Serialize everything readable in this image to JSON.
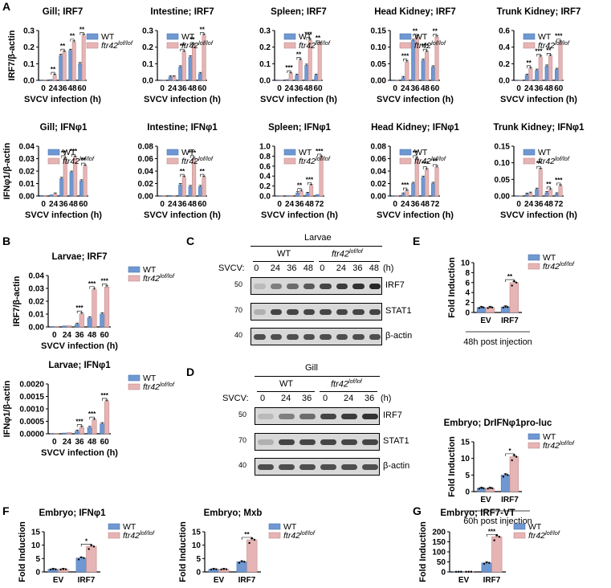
{
  "colors": {
    "wt": "#6f98d2",
    "ko": "#e6b4b4",
    "wt_dark": "#4d78b4",
    "ko_dark": "#c28a8a"
  },
  "legend": {
    "wt": "WT",
    "ko_base": "ftr42",
    "ko_sup": "lof/lof"
  },
  "panel_labels": {
    "A": "A",
    "B": "B",
    "C": "C",
    "D": "D",
    "E": "E",
    "F": "F",
    "G": "G"
  },
  "chart_data": [
    {
      "type": "bar",
      "title": "Gill; IRF7",
      "ylabel": "IRF7/β-actin",
      "xlabel": "SVCV infection (h)",
      "categories": [
        "0",
        "24",
        "36",
        "48",
        "60"
      ],
      "yticks": [
        "0.0",
        "0.1",
        "0.2",
        "0.3"
      ],
      "ylim": [
        0,
        0.3
      ],
      "series": [
        {
          "name": "WT",
          "values": [
            0.002,
            0.005,
            0.15,
            0.18,
            0.1
          ]
        },
        {
          "name": "ftr42lof/lof",
          "values": [
            0.002,
            0.03,
            0.17,
            0.23,
            0.27
          ]
        }
      ],
      "significance": [
        "",
        "**",
        "**",
        "**",
        "**"
      ]
    },
    {
      "type": "bar",
      "title": "Intestine; IRF7",
      "xlabel": "SVCV infection (h)",
      "categories": [
        "0",
        "24",
        "36",
        "48",
        "60"
      ],
      "yticks": [
        "0.0",
        "0.1",
        "0.2",
        "0.3"
      ],
      "ylim": [
        0,
        0.3
      ],
      "series": [
        {
          "name": "WT",
          "values": [
            0.002,
            0.02,
            0.08,
            0.14,
            0.04
          ]
        },
        {
          "name": "ftr42lof/lof",
          "values": [
            0.002,
            0.02,
            0.17,
            0.21,
            0.27
          ]
        }
      ],
      "significance": [
        "",
        "",
        "**",
        "**",
        "**"
      ]
    },
    {
      "type": "bar",
      "title": "Spleen; IRF7",
      "xlabel": "SVCV infection (h)",
      "categories": [
        "0",
        "24",
        "36",
        "48",
        "60"
      ],
      "yticks": [
        "0.0",
        "0.1",
        "0.2",
        "0.3"
      ],
      "ylim": [
        0,
        0.3
      ],
      "series": [
        {
          "name": "WT",
          "values": [
            0.002,
            0.005,
            0.03,
            0.09,
            0.03
          ]
        },
        {
          "name": "ftr42lof/lof",
          "values": [
            0.002,
            0.04,
            0.12,
            0.24,
            0.22
          ]
        }
      ],
      "significance": [
        "",
        "***",
        "**",
        "***",
        "**"
      ]
    },
    {
      "type": "bar",
      "title": "Head Kidney; IRF7",
      "xlabel": "SVCV infection (h)",
      "categories": [
        "0",
        "24",
        "36",
        "48",
        "60"
      ],
      "yticks": [
        "0.00",
        "0.05",
        "0.10",
        "0.15"
      ],
      "ylim": [
        0,
        0.15
      ],
      "series": [
        {
          "name": "WT",
          "values": [
            0.001,
            0.008,
            0.12,
            0.06,
            0.04
          ]
        },
        {
          "name": "ftr42lof/lof",
          "values": [
            0.001,
            0.055,
            0.13,
            0.085,
            0.13
          ]
        }
      ],
      "significance": [
        "",
        "***",
        "**",
        "***",
        "**"
      ]
    },
    {
      "type": "bar",
      "title": "Trunk Kidney; IRF7",
      "xlabel": "SVCV infection (h)",
      "categories": [
        "0",
        "24",
        "36",
        "48",
        "60"
      ],
      "yticks": [
        "0.0",
        "0.2",
        "0.4",
        "0.6"
      ],
      "ylim": [
        0,
        0.6
      ],
      "series": [
        {
          "name": "WT",
          "values": [
            0.002,
            0.06,
            0.12,
            0.17,
            0.13
          ]
        },
        {
          "name": "ftr42lof/lof",
          "values": [
            0.002,
            0.14,
            0.28,
            0.29,
            0.46
          ]
        }
      ],
      "significance": [
        "",
        "**",
        "***",
        "**",
        "***"
      ]
    },
    {
      "type": "bar",
      "title": "Gill; IFNφ1",
      "ylabel": "IFNφ1/β-actin",
      "xlabel": "SVCV infection (h)",
      "categories": [
        "0",
        "24",
        "36",
        "48",
        "60"
      ],
      "yticks": [
        "0.00",
        "0.01",
        "0.02",
        "0.03",
        "0.04"
      ],
      "ylim": [
        0,
        0.04
      ],
      "series": [
        {
          "name": "WT",
          "values": [
            0.0005,
            0.001,
            0.014,
            0.019,
            0.012
          ]
        },
        {
          "name": "ftr42lof/lof",
          "values": [
            0.0005,
            0.0015,
            0.03,
            0.031,
            0.024
          ]
        }
      ],
      "significance": [
        "",
        "",
        "**",
        "***",
        "**"
      ]
    },
    {
      "type": "bar",
      "title": "Intestine; IFNφ1",
      "xlabel": "SVCV infection (h)",
      "categories": [
        "0",
        "24",
        "36",
        "48",
        "60"
      ],
      "yticks": [
        "0.00",
        "0.02",
        "0.04",
        "0.06",
        "0.08"
      ],
      "ylim": [
        0,
        0.08
      ],
      "series": [
        {
          "name": "WT",
          "values": [
            0.0005,
            0.001,
            0.018,
            0.015,
            0.015
          ]
        },
        {
          "name": "ftr42lof/lof",
          "values": [
            0.0005,
            0.001,
            0.03,
            0.06,
            0.03
          ]
        }
      ],
      "significance": [
        "",
        "",
        "**",
        "***",
        "**"
      ]
    },
    {
      "type": "bar",
      "title": "Spleen; IFNφ1",
      "xlabel": "SVCV infection (h)",
      "categories": [
        "0",
        "24",
        "36",
        "48",
        "72"
      ],
      "yticks": [
        "0.0",
        "0.2",
        "0.4",
        "0.6",
        "0.8",
        "1.0"
      ],
      "ylim": [
        0,
        1.0
      ],
      "series": [
        {
          "name": "WT",
          "values": [
            0.002,
            0.005,
            0.06,
            0.05,
            0.03
          ]
        },
        {
          "name": "ftr42lof/lof",
          "values": [
            0.002,
            0.01,
            0.09,
            0.21,
            0.78
          ]
        }
      ],
      "significance": [
        "",
        "",
        "**",
        "***",
        "***"
      ]
    },
    {
      "type": "bar",
      "title": "Head Kidney; IFNφ1",
      "xlabel": "SVCV infection (h)",
      "categories": [
        "0",
        "24",
        "36",
        "48",
        "72"
      ],
      "yticks": [
        "0.00",
        "0.02",
        "0.04",
        "0.06",
        "0.08"
      ],
      "ylim": [
        0,
        0.08
      ],
      "series": [
        {
          "name": "WT",
          "values": [
            0.0005,
            0.003,
            0.02,
            0.03,
            0.02
          ]
        },
        {
          "name": "ftr42lof/lof",
          "values": [
            0.0005,
            0.008,
            0.06,
            0.042,
            0.046
          ]
        }
      ],
      "significance": [
        "",
        "***",
        "**",
        "***",
        "**"
      ]
    },
    {
      "type": "bar",
      "title": "Trunk Kidney; IFNφ1",
      "xlabel": "SVCV infection (h)",
      "categories": [
        "0",
        "24",
        "36",
        "48",
        "72"
      ],
      "yticks": [
        "0.00",
        "0.05",
        "0.10",
        "0.15"
      ],
      "ylim": [
        0,
        0.15
      ],
      "series": [
        {
          "name": "WT",
          "values": [
            0.0005,
            0.005,
            0.02,
            0.01,
            0.006
          ]
        },
        {
          "name": "ftr42lof/lof",
          "values": [
            0.0005,
            0.008,
            0.08,
            0.018,
            0.03
          ]
        }
      ],
      "significance": [
        "",
        "",
        "**",
        "**",
        "***"
      ]
    },
    {
      "type": "bar",
      "title": "Larvae; IRF7",
      "ylabel": "IRF7/β-actin",
      "xlabel": "SVCV infection (h)",
      "categories": [
        "0",
        "24",
        "36",
        "48",
        "60"
      ],
      "yticks": [
        "0.00",
        "0.01",
        "0.02",
        "0.03",
        "0.04"
      ],
      "ylim": [
        0,
        0.04
      ],
      "series": [
        {
          "name": "WT",
          "values": [
            0.0003,
            0.0008,
            0.002,
            0.007,
            0.01
          ]
        },
        {
          "name": "ftr42lof/lof",
          "values": [
            0.0003,
            0.001,
            0.01,
            0.029,
            0.031
          ]
        }
      ],
      "significance": [
        "",
        "",
        "***",
        "***",
        "***"
      ]
    },
    {
      "type": "bar",
      "title": "Larvae; IFNφ1",
      "ylabel": "IFNφ1/β-actin",
      "xlabel": "SVCV infection (h)",
      "categories": [
        "0",
        "24",
        "36",
        "48",
        "60"
      ],
      "yticks": [
        "0.0000",
        "0.0005",
        "0.0010",
        "0.0015",
        "0.0020"
      ],
      "ylim": [
        0,
        0.002
      ],
      "series": [
        {
          "name": "WT",
          "values": [
            1e-05,
            3e-05,
            0.0001,
            0.00025,
            0.0004
          ]
        },
        {
          "name": "ftr42lof/lof",
          "values": [
            1e-05,
            5e-05,
            0.00025,
            0.00055,
            0.0013
          ]
        }
      ],
      "significance": [
        "",
        "",
        "***",
        "***",
        "***"
      ]
    },
    {
      "type": "bar",
      "title": "",
      "ylabel": "Fold Induction",
      "categories": [
        "EV",
        "IRF7"
      ],
      "yticks": [
        "0",
        "2",
        "4",
        "6",
        "8",
        "10"
      ],
      "ylim": [
        0,
        10
      ],
      "series": [
        {
          "name": "WT",
          "values": [
            1,
            1.1
          ]
        },
        {
          "name": "ftr42lof/lof",
          "values": [
            1,
            6
          ]
        }
      ],
      "significance": [
        "",
        "**"
      ],
      "caption": "48h post injection"
    },
    {
      "type": "bar",
      "title": "Embryo; DrIFNφ1pro-luc",
      "ylabel": "Fold Induction",
      "categories": [
        "EV",
        "IRF7"
      ],
      "yticks": [
        "0",
        "5",
        "10",
        "15"
      ],
      "ylim": [
        0,
        15
      ],
      "series": [
        {
          "name": "WT",
          "values": [
            1,
            5
          ]
        },
        {
          "name": "ftr42lof/lof",
          "values": [
            1,
            10.5
          ]
        }
      ],
      "significance": [
        "",
        "*"
      ],
      "caption": "60h post injection"
    },
    {
      "type": "bar",
      "title": "Embryo; IFNφ1",
      "ylabel": "Fold Induction",
      "categories": [
        "EV",
        "IRF7"
      ],
      "yticks": [
        "0",
        "5",
        "10",
        "15"
      ],
      "ylim": [
        0,
        15
      ],
      "series": [
        {
          "name": "WT",
          "values": [
            1,
            5.2
          ]
        },
        {
          "name": "ftr42lof/lof",
          "values": [
            1,
            9.5
          ]
        }
      ],
      "significance": [
        "",
        "*"
      ]
    },
    {
      "type": "bar",
      "title": "Embryo; Mxb",
      "ylabel": "Fold Induction",
      "categories": [
        "EV",
        "IRF7"
      ],
      "yticks": [
        "0",
        "5",
        "10",
        "15"
      ],
      "ylim": [
        0,
        15
      ],
      "series": [
        {
          "name": "WT",
          "values": [
            1,
            3.8
          ]
        },
        {
          "name": "ftr42lof/lof",
          "values": [
            1,
            12
          ]
        }
      ],
      "significance": [
        "",
        "**"
      ]
    },
    {
      "type": "bar",
      "title": "Embryo; IRF7-VT",
      "ylabel": "Fold Induction",
      "categories": [
        "EV",
        "IRF7"
      ],
      "yticks": [
        "0",
        "50",
        "100",
        "150",
        "200"
      ],
      "ylim": [
        0,
        200
      ],
      "series": [
        {
          "name": "WT",
          "values": [
            1,
            45
          ]
        },
        {
          "name": "ftr42lof/lof",
          "values": [
            1,
            175
          ]
        }
      ],
      "significance": [
        "",
        "***"
      ]
    }
  ],
  "blots": {
    "C": {
      "group_label": "Larvae",
      "wt": "WT",
      "ko_base": "ftr42",
      "ko_sup": "lof/lof",
      "svcv_label": "SVCV:",
      "timepoints": [
        "0",
        "24",
        "36",
        "48",
        "0",
        "24",
        "36",
        "48"
      ],
      "unit": "(h)",
      "bands": [
        "IRF7",
        "STAT1",
        "β-actin"
      ],
      "mw": [
        "50",
        "70",
        "40"
      ]
    },
    "D": {
      "group_label": "Gill",
      "wt": "WT",
      "ko_base": "ftr42",
      "ko_sup": "lof/lof",
      "svcv_label": "SVCV:",
      "timepoints": [
        "0",
        "24",
        "36",
        "0",
        "24",
        "36"
      ],
      "unit": "(h)",
      "bands": [
        "IRF7",
        "STAT1",
        "β-actin"
      ],
      "mw": [
        "50",
        "70",
        "40"
      ]
    }
  }
}
